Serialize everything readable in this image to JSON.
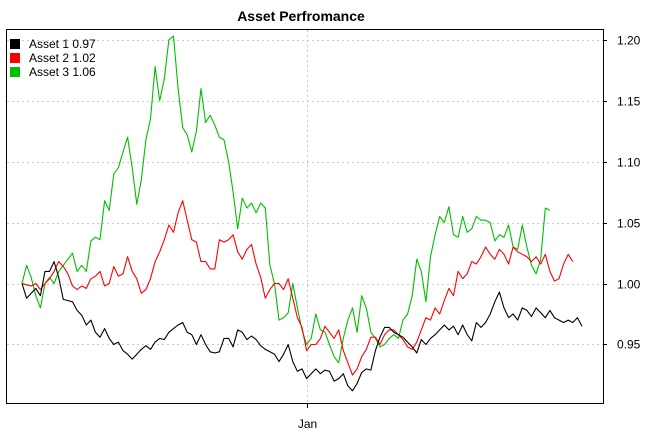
{
  "chart_data": {
    "type": "line",
    "title": "Asset Perfromance",
    "xlabel": "",
    "ylabel": "",
    "x_tick_labels": [
      "Jan"
    ],
    "x_tick_index": 62,
    "ylim": [
      0.902,
      1.208
    ],
    "yticks": [
      "0.95",
      "1.00",
      "1.05",
      "1.10",
      "1.15",
      "1.20"
    ],
    "grid": true,
    "legend_position": "top-left",
    "y_axis_side": "right",
    "series": [
      {
        "name": "Asset 1 0.97",
        "color": "#000000",
        "values": [
          1.0,
          0.988,
          0.992,
          0.996,
          0.99,
          1.01,
          1.01,
          1.018,
          1.005,
          0.987,
          0.986,
          0.985,
          0.978,
          0.974,
          0.966,
          0.97,
          0.96,
          0.956,
          0.963,
          0.955,
          0.95,
          0.952,
          0.945,
          0.942,
          0.938,
          0.942,
          0.946,
          0.949,
          0.946,
          0.952,
          0.955,
          0.954,
          0.96,
          0.963,
          0.966,
          0.968,
          0.96,
          0.958,
          0.95,
          0.958,
          0.95,
          0.944,
          0.943,
          0.944,
          0.955,
          0.955,
          0.948,
          0.962,
          0.96,
          0.954,
          0.957,
          0.954,
          0.949,
          0.946,
          0.944,
          0.942,
          0.936,
          0.942,
          0.95,
          0.936,
          0.928,
          0.93,
          0.922,
          0.926,
          0.93,
          0.926,
          0.929,
          0.928,
          0.92,
          0.922,
          0.926,
          0.916,
          0.912,
          0.918,
          0.927,
          0.93,
          0.929,
          0.945,
          0.956,
          0.964,
          0.964,
          0.96,
          0.958,
          0.956,
          0.952,
          0.948,
          0.943,
          0.954,
          0.95,
          0.955,
          0.958,
          0.962,
          0.966,
          0.962,
          0.965,
          0.958,
          0.966,
          0.958,
          0.953,
          0.968,
          0.964,
          0.968,
          0.975,
          0.985,
          0.993,
          0.98,
          0.972,
          0.975,
          0.97,
          0.98,
          0.978,
          0.973,
          0.98,
          0.976,
          0.972,
          0.978,
          0.972,
          0.97,
          0.968,
          0.97,
          0.968,
          0.972,
          0.965
        ]
      },
      {
        "name": "Asset 2 1.02",
        "color": "#ff0000",
        "values": [
          1.0,
          0.999,
          0.998,
          1.0,
          0.995,
          1.0,
          1.004,
          1.01,
          1.018,
          1.014,
          1.008,
          0.998,
          0.995,
          0.998,
          0.996,
          1.004,
          1.006,
          1.01,
          0.998,
          1.0,
          1.014,
          1.006,
          1.008,
          1.022,
          1.01,
          1.004,
          0.992,
          0.995,
          1.004,
          1.018,
          1.026,
          1.036,
          1.048,
          1.042,
          1.058,
          1.068,
          1.052,
          1.036,
          1.034,
          1.018,
          1.018,
          1.012,
          1.012,
          1.036,
          1.034,
          1.036,
          1.04,
          1.026,
          1.02,
          1.028,
          1.032,
          1.016,
          1.005,
          0.988,
          0.995,
          1.0,
          1.0,
          0.995,
          1.004,
          0.988,
          0.972,
          0.964,
          0.945,
          0.95,
          0.95,
          0.955,
          0.965,
          0.96,
          0.955,
          0.962,
          0.945,
          0.935,
          0.925,
          0.93,
          0.94,
          0.946,
          0.956,
          0.956,
          0.95,
          0.958,
          0.962,
          0.962,
          0.958,
          0.954,
          0.948,
          0.946,
          0.952,
          0.962,
          0.972,
          0.97,
          0.98,
          0.975,
          0.986,
          0.996,
          0.99,
          1.01,
          1.004,
          1.008,
          1.018,
          1.016,
          1.022,
          1.03,
          1.024,
          1.02,
          1.028,
          1.024,
          1.016,
          1.03,
          1.026,
          1.024,
          1.022,
          1.018,
          1.022,
          1.016,
          1.024,
          1.01,
          1.002,
          1.004,
          1.016,
          1.024,
          1.018
        ]
      },
      {
        "name": "Asset 3 1.06",
        "color": "#00bf00",
        "values": [
          1.0,
          1.015,
          1.005,
          0.99,
          0.98,
          1.0,
          1.005,
          1.0,
          1.01,
          1.015,
          1.02,
          1.025,
          1.01,
          1.015,
          1.01,
          1.035,
          1.038,
          1.036,
          1.068,
          1.06,
          1.09,
          1.095,
          1.108,
          1.12,
          1.095,
          1.065,
          1.085,
          1.118,
          1.135,
          1.178,
          1.15,
          1.168,
          1.2,
          1.203,
          1.16,
          1.128,
          1.122,
          1.108,
          1.125,
          1.16,
          1.132,
          1.138,
          1.13,
          1.12,
          1.118,
          1.1,
          1.075,
          1.045,
          1.07,
          1.062,
          1.066,
          1.058,
          1.066,
          1.062,
          1.015,
          1.0,
          0.97,
          0.972,
          0.976,
          1.0,
          0.98,
          0.962,
          0.95,
          0.955,
          0.975,
          0.962,
          0.96,
          0.95,
          0.94,
          0.935,
          0.955,
          0.97,
          0.98,
          0.96,
          0.99,
          0.98,
          0.96,
          0.955,
          0.948,
          0.95,
          0.955,
          0.958,
          0.955,
          0.97,
          0.975,
          0.99,
          1.02,
          1.01,
          0.985,
          1.022,
          1.04,
          1.055,
          1.05,
          1.063,
          1.04,
          1.038,
          1.055,
          1.042,
          1.045,
          1.055,
          1.052,
          1.052,
          1.05,
          1.035,
          1.04,
          1.038,
          1.048,
          1.03,
          1.028,
          1.048,
          1.03,
          1.015,
          1.008,
          1.02,
          1.062,
          1.06
        ]
      }
    ]
  }
}
